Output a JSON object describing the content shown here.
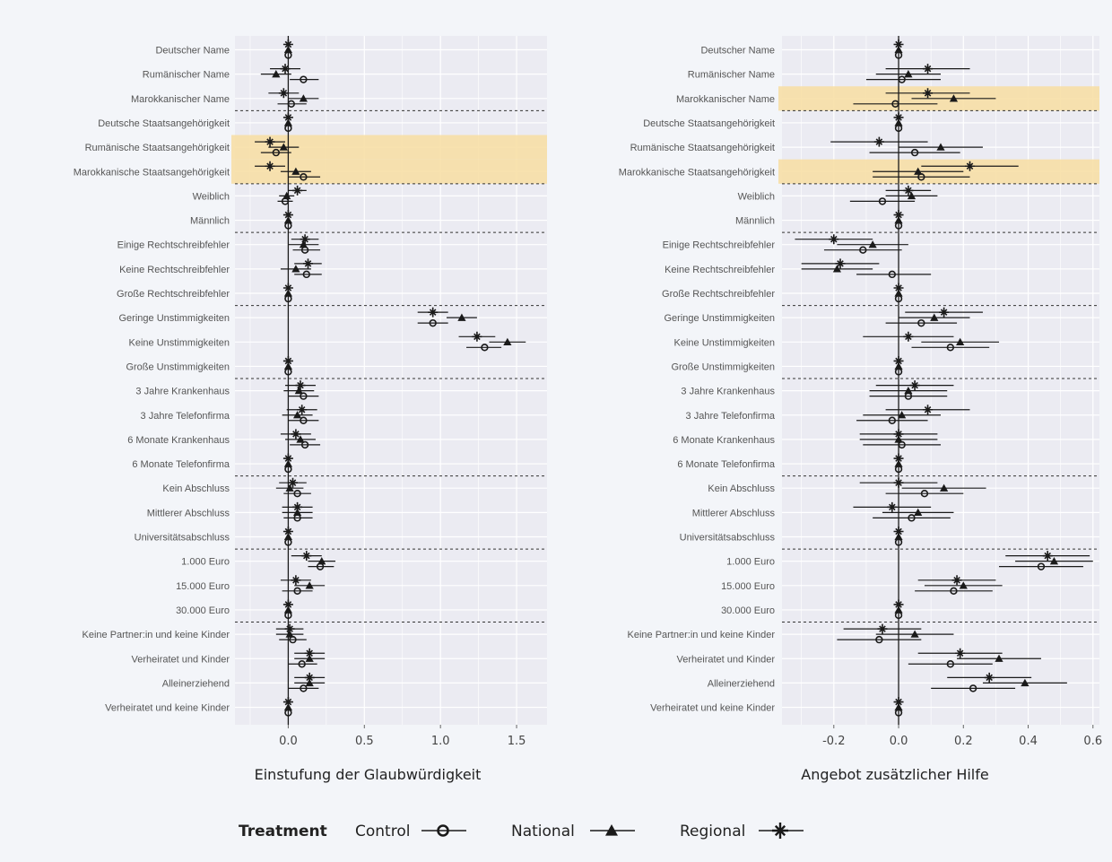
{
  "chart_data": [
    {
      "type": "coefficient-plot",
      "xlabel": "Einstufung der Glaubwürdigkeit",
      "xlim": [
        -0.35,
        1.7
      ],
      "xticks": [
        0.0,
        0.5,
        1.0,
        1.5
      ],
      "xtick_labels": [
        "0.0",
        "0.5",
        "1.0",
        "1.5"
      ],
      "grid": true,
      "highlighted_rows": [
        4,
        5
      ],
      "categories": [
        "Deutscher Name",
        "Rumänischer Name",
        "Marokkanischer Name",
        "Deutsche Staatsangehörigkeit",
        "Rumänische Staatsangehörigkeit",
        "Marokkanische Staatsangehörigkeit",
        "Weiblich",
        "Männlich",
        "Einige Rechtschreibfehler",
        "Keine Rechtschreibfehler",
        "Große Rechtschreibfehler",
        "Geringe Unstimmigkeiten",
        "Keine Unstimmigkeiten",
        "Große Unstimmigkeiten",
        "3 Jahre Krankenhaus",
        "3 Jahre Telefonfirma",
        "6 Monate Krankenhaus",
        "6 Monate Telefonfirma",
        "Kein Abschluss",
        "Mittlerer Abschluss",
        "Universitätsabschluss",
        "1.000 Euro",
        "15.000 Euro",
        "30.000 Euro",
        "Keine Partner:in und keine Kinder",
        "Verheiratet und Kinder",
        "Alleinerziehend",
        "Verheiratet und keine Kinder"
      ],
      "group_separators_after": [
        2,
        5,
        7,
        10,
        13,
        17,
        20,
        23
      ],
      "series": [
        {
          "name": "Control",
          "marker": "circle",
          "estimate": [
            0.0,
            0.1,
            0.02,
            0.0,
            -0.08,
            0.1,
            -0.02,
            0.0,
            0.11,
            0.12,
            0.0,
            0.95,
            1.29,
            0.0,
            0.1,
            0.1,
            0.11,
            0.0,
            0.06,
            0.06,
            0.0,
            0.21,
            0.06,
            0.0,
            0.03,
            0.09,
            0.1,
            0.0
          ],
          "lower": [
            0.0,
            0.01,
            -0.07,
            0.0,
            -0.18,
            0.0,
            -0.07,
            0.0,
            0.03,
            0.04,
            0.0,
            0.85,
            1.17,
            0.0,
            0.0,
            0.0,
            0.01,
            0.0,
            -0.03,
            -0.03,
            0.0,
            0.13,
            -0.04,
            0.0,
            -0.06,
            0.0,
            0.0,
            0.0
          ],
          "upper": [
            0.0,
            0.2,
            0.12,
            0.0,
            0.02,
            0.21,
            0.03,
            0.0,
            0.21,
            0.22,
            0.0,
            1.05,
            1.4,
            0.0,
            0.2,
            0.2,
            0.21,
            0.0,
            0.15,
            0.16,
            0.0,
            0.3,
            0.16,
            0.0,
            0.12,
            0.19,
            0.2,
            0.0
          ]
        },
        {
          "name": "National",
          "marker": "triangle",
          "estimate": [
            0.0,
            -0.08,
            0.1,
            0.0,
            -0.03,
            0.05,
            -0.01,
            0.0,
            0.1,
            0.05,
            0.0,
            1.14,
            1.44,
            0.0,
            0.07,
            0.06,
            0.08,
            0.0,
            0.01,
            0.06,
            0.0,
            0.22,
            0.14,
            0.0,
            0.01,
            0.14,
            0.14,
            0.0
          ],
          "lower": [
            0.0,
            -0.18,
            0.0,
            0.0,
            -0.13,
            -0.05,
            -0.06,
            0.0,
            0.0,
            -0.05,
            0.0,
            1.04,
            1.32,
            0.0,
            -0.03,
            -0.04,
            -0.02,
            0.0,
            -0.08,
            -0.04,
            0.0,
            0.13,
            0.04,
            0.0,
            -0.08,
            0.04,
            0.04,
            0.0
          ],
          "upper": [
            0.0,
            0.02,
            0.2,
            0.0,
            0.07,
            0.15,
            0.04,
            0.0,
            0.2,
            0.15,
            0.0,
            1.24,
            1.56,
            0.0,
            0.17,
            0.16,
            0.18,
            0.0,
            0.1,
            0.16,
            0.0,
            0.31,
            0.24,
            0.0,
            0.1,
            0.24,
            0.24,
            0.0
          ]
        },
        {
          "name": "Regional",
          "marker": "asterisk",
          "estimate": [
            0.0,
            -0.02,
            -0.03,
            0.0,
            -0.12,
            -0.12,
            0.06,
            0.0,
            0.11,
            0.13,
            0.0,
            0.95,
            1.24,
            0.0,
            0.08,
            0.09,
            0.05,
            0.0,
            0.03,
            0.06,
            0.0,
            0.12,
            0.05,
            0.0,
            0.01,
            0.14,
            0.14,
            0.0
          ],
          "lower": [
            0.0,
            -0.12,
            -0.13,
            0.0,
            -0.22,
            -0.22,
            0.0,
            0.0,
            0.02,
            0.04,
            0.0,
            0.85,
            1.12,
            0.0,
            -0.02,
            -0.01,
            -0.05,
            0.0,
            -0.06,
            -0.04,
            0.0,
            0.02,
            -0.05,
            0.0,
            -0.08,
            0.04,
            0.04,
            0.0
          ],
          "upper": [
            0.0,
            0.08,
            0.07,
            0.0,
            -0.02,
            -0.02,
            0.12,
            0.0,
            0.2,
            0.22,
            0.0,
            1.05,
            1.36,
            0.0,
            0.18,
            0.19,
            0.15,
            0.0,
            0.12,
            0.16,
            0.0,
            0.22,
            0.15,
            0.0,
            0.1,
            0.24,
            0.24,
            0.0
          ]
        }
      ]
    },
    {
      "type": "coefficient-plot",
      "xlabel": "Angebot zusätzlicher Hilfe",
      "xlim": [
        -0.36,
        0.62
      ],
      "xticks": [
        -0.2,
        0.0,
        0.2,
        0.4,
        0.6
      ],
      "xtick_labels": [
        "-0.2",
        "0.0",
        "0.2",
        "0.4",
        "0.6"
      ],
      "grid": true,
      "highlighted_rows": [
        2,
        5
      ],
      "categories": [
        "Deutscher Name",
        "Rumänischer Name",
        "Marokkanischer Name",
        "Deutsche Staatsangehörigkeit",
        "Rumänische Staatsangehörigkeit",
        "Marokkanische Staatsangehörigkeit",
        "Weiblich",
        "Männlich",
        "Einige Rechtschreibfehler",
        "Keine Rechtschreibfehler",
        "Große Rechtschreibfehler",
        "Geringe Unstimmigkeiten",
        "Keine Unstimmigkeiten",
        "Große Unstimmigkeiten",
        "3 Jahre Krankenhaus",
        "3 Jahre Telefonfirma",
        "6 Monate Krankenhaus",
        "6 Monate Telefonfirma",
        "Kein Abschluss",
        "Mittlerer Abschluss",
        "Universitätsabschluss",
        "1.000 Euro",
        "15.000 Euro",
        "30.000 Euro",
        "Keine Partner:in und keine Kinder",
        "Verheiratet und Kinder",
        "Alleinerziehend",
        "Verheiratet und keine Kinder"
      ],
      "group_separators_after": [
        2,
        5,
        7,
        10,
        13,
        17,
        20,
        23
      ],
      "series": [
        {
          "name": "Control",
          "marker": "circle",
          "estimate": [
            0.0,
            0.01,
            -0.01,
            0.0,
            0.05,
            0.07,
            -0.05,
            0.0,
            -0.11,
            -0.02,
            0.0,
            0.07,
            0.16,
            0.0,
            0.03,
            -0.02,
            0.01,
            0.0,
            0.08,
            0.04,
            0.0,
            0.44,
            0.17,
            0.0,
            -0.06,
            0.16,
            0.23,
            0.0
          ],
          "lower": [
            0.0,
            -0.1,
            -0.14,
            0.0,
            -0.09,
            -0.08,
            -0.15,
            0.0,
            -0.23,
            -0.13,
            0.0,
            -0.04,
            0.04,
            0.0,
            -0.09,
            -0.13,
            -0.11,
            0.0,
            -0.04,
            -0.08,
            0.0,
            0.31,
            0.05,
            0.0,
            -0.19,
            0.03,
            0.1,
            0.0
          ],
          "upper": [
            0.0,
            0.13,
            0.12,
            0.0,
            0.19,
            0.22,
            0.05,
            0.0,
            0.01,
            0.1,
            0.0,
            0.18,
            0.28,
            0.0,
            0.15,
            0.09,
            0.13,
            0.0,
            0.2,
            0.16,
            0.0,
            0.57,
            0.29,
            0.0,
            0.07,
            0.29,
            0.36,
            0.0
          ]
        },
        {
          "name": "National",
          "marker": "triangle",
          "estimate": [
            0.0,
            0.03,
            0.17,
            0.0,
            0.13,
            0.06,
            0.04,
            0.0,
            -0.08,
            -0.19,
            0.0,
            0.11,
            0.19,
            0.0,
            0.03,
            0.01,
            0.0,
            0.0,
            0.14,
            0.06,
            0.0,
            0.48,
            0.2,
            0.0,
            0.05,
            0.31,
            0.39,
            0.0
          ],
          "lower": [
            0.0,
            -0.07,
            0.04,
            0.0,
            0.0,
            -0.08,
            -0.04,
            0.0,
            -0.19,
            -0.3,
            0.0,
            0.0,
            0.07,
            0.0,
            -0.09,
            -0.11,
            -0.12,
            0.0,
            0.01,
            -0.05,
            0.0,
            0.36,
            0.08,
            0.0,
            -0.07,
            0.18,
            0.26,
            0.0
          ],
          "upper": [
            0.0,
            0.13,
            0.3,
            0.0,
            0.26,
            0.2,
            0.12,
            0.0,
            0.03,
            -0.08,
            0.0,
            0.22,
            0.31,
            0.0,
            0.15,
            0.13,
            0.12,
            0.0,
            0.27,
            0.17,
            0.0,
            0.6,
            0.32,
            0.0,
            0.17,
            0.44,
            0.52,
            0.0
          ]
        },
        {
          "name": "Regional",
          "marker": "asterisk",
          "estimate": [
            0.0,
            0.09,
            0.09,
            0.0,
            -0.06,
            0.22,
            0.03,
            0.0,
            -0.2,
            -0.18,
            0.0,
            0.14,
            0.03,
            0.0,
            0.05,
            0.09,
            0.0,
            0.0,
            0.0,
            -0.02,
            0.0,
            0.46,
            0.18,
            0.0,
            -0.05,
            0.19,
            0.28,
            0.0
          ],
          "lower": [
            0.0,
            -0.04,
            -0.04,
            0.0,
            -0.21,
            0.07,
            -0.04,
            0.0,
            -0.32,
            -0.3,
            0.0,
            0.02,
            -0.11,
            0.0,
            -0.07,
            -0.04,
            -0.12,
            0.0,
            -0.12,
            -0.14,
            0.0,
            0.33,
            0.06,
            0.0,
            -0.17,
            0.06,
            0.15,
            0.0
          ],
          "upper": [
            0.0,
            0.22,
            0.22,
            0.0,
            0.09,
            0.37,
            0.1,
            0.0,
            -0.08,
            -0.06,
            0.0,
            0.26,
            0.17,
            0.0,
            0.17,
            0.22,
            0.12,
            0.0,
            0.12,
            0.1,
            0.0,
            0.59,
            0.3,
            0.0,
            0.07,
            0.32,
            0.41,
            0.0
          ]
        }
      ]
    }
  ],
  "legend": {
    "title": "Treatment",
    "position": "bottom",
    "items": [
      {
        "label": "Control",
        "marker": "circle"
      },
      {
        "label": "National",
        "marker": "triangle"
      },
      {
        "label": "Regional",
        "marker": "asterisk"
      }
    ]
  },
  "colors": {
    "panel_bg": "#ebebf2",
    "gridline": "#ffffff",
    "highlight": "#f7dfa6",
    "ink": "#1a1a1a",
    "separator": "#333333"
  }
}
